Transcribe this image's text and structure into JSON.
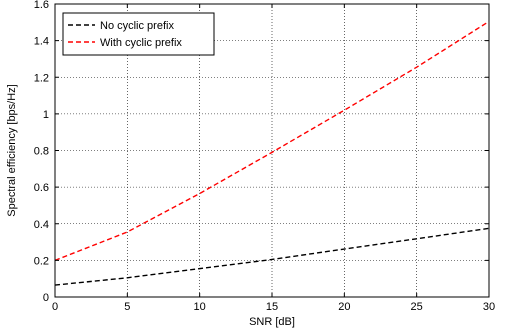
{
  "chart_data": {
    "type": "line",
    "title": "",
    "xlabel": "SNR [dB]",
    "ylabel": "Spectral efficiency [bps/Hz]",
    "xlim": [
      0,
      30
    ],
    "ylim": [
      0,
      1.6
    ],
    "xticks": [
      0,
      5,
      10,
      15,
      20,
      25,
      30
    ],
    "yticks": [
      0,
      0.2,
      0.4,
      0.6,
      0.8,
      1,
      1.2,
      1.4,
      1.6
    ],
    "grid": true,
    "legend_position": "top-left",
    "x": [
      0,
      5,
      10,
      15,
      20,
      25,
      30
    ],
    "series": [
      {
        "name": "No cyclic prefix",
        "color": "#000000",
        "dash": "dashed",
        "values": [
          0.065,
          0.105,
          0.155,
          0.205,
          0.262,
          0.318,
          0.375
        ]
      },
      {
        "name": "With cyclic prefix",
        "color": "#ff0000",
        "dash": "dashed",
        "values": [
          0.2,
          0.355,
          0.565,
          0.79,
          1.02,
          1.255,
          1.505
        ]
      }
    ]
  }
}
